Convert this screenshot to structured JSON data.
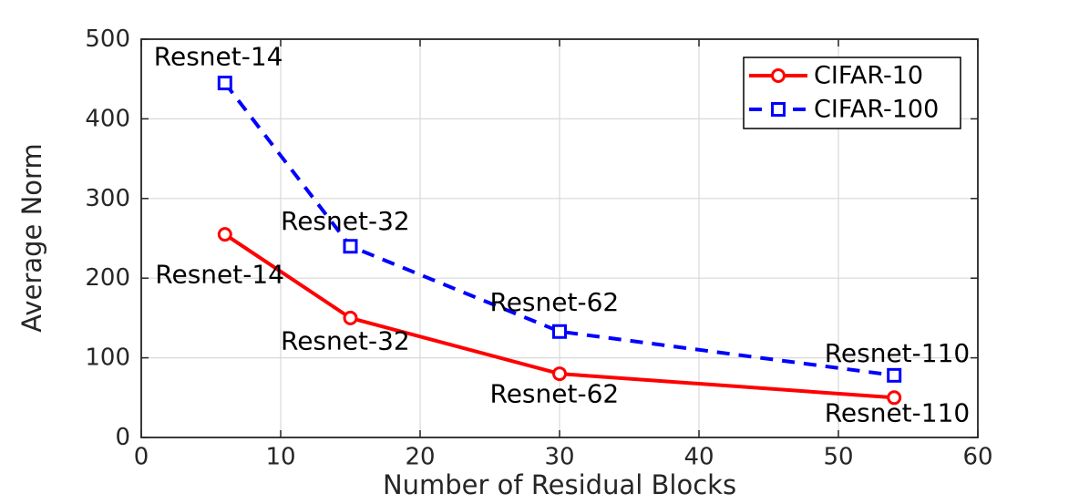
{
  "chart_data": {
    "type": "line",
    "title": "",
    "xlabel": "Number of Residual Blocks",
    "ylabel": "Average Norm",
    "xlim": [
      0,
      60
    ],
    "ylim": [
      0,
      500
    ],
    "xticks": [
      0,
      10,
      20,
      30,
      40,
      50,
      60
    ],
    "yticks": [
      0,
      100,
      200,
      300,
      400,
      500
    ],
    "grid": true,
    "colors": {
      "axis": "#262626",
      "grid": "#d9d9d9",
      "annotation": "#000000",
      "legend_border": "#000000",
      "legend_background": "#ffffff",
      "background": "#ffffff"
    },
    "legend": {
      "position": "top-right"
    },
    "series": [
      {
        "name": "CIFAR-10",
        "color": "#ff0000",
        "line_style": "solid",
        "marker": "circle",
        "x": [
          6,
          15,
          30,
          54
        ],
        "y": [
          255,
          150,
          80,
          50
        ]
      },
      {
        "name": "CIFAR-100",
        "color": "#0000ff",
        "line_style": "dashed",
        "marker": "square",
        "x": [
          6,
          15,
          30,
          54
        ],
        "y": [
          445,
          240,
          133,
          78
        ]
      }
    ],
    "annotations": [
      {
        "text": "Resnet-14",
        "series": "CIFAR-100",
        "x": 0.9,
        "y": 478
      },
      {
        "text": "Resnet-32",
        "series": "CIFAR-100",
        "x": 10,
        "y": 272
      },
      {
        "text": "Resnet-62",
        "series": "CIFAR-100",
        "x": 25,
        "y": 170
      },
      {
        "text": "Resnet-110",
        "series": "CIFAR-100",
        "x": 49,
        "y": 106
      },
      {
        "text": "Resnet-14",
        "series": "CIFAR-10",
        "x": 1,
        "y": 205
      },
      {
        "text": "Resnet-32",
        "series": "CIFAR-10",
        "x": 10,
        "y": 121
      },
      {
        "text": "Resnet-62",
        "series": "CIFAR-10",
        "x": 25,
        "y": 55
      },
      {
        "text": "Resnet-110",
        "series": "CIFAR-10",
        "x": 49,
        "y": 31
      }
    ]
  }
}
